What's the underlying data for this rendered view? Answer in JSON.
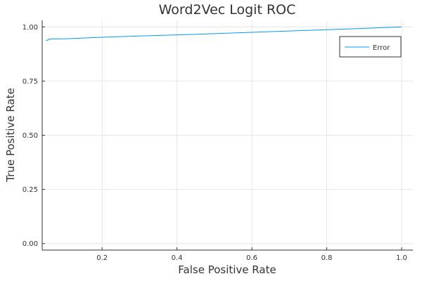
{
  "chart_data": {
    "type": "line",
    "title": "Word2Vec Logit ROC",
    "xlabel": "False Positive Rate",
    "ylabel": "True Positive Rate",
    "xlim": [
      0.04,
      1.03
    ],
    "ylim": [
      -0.03,
      1.03
    ],
    "grid": true,
    "legend_position": "top-right",
    "xticks": [
      {
        "value": 0.2,
        "label": "0.2"
      },
      {
        "value": 0.4,
        "label": "0.4"
      },
      {
        "value": 0.6,
        "label": "0.6"
      },
      {
        "value": 0.8,
        "label": "0.8"
      },
      {
        "value": 1.0,
        "label": "1.0"
      }
    ],
    "yticks": [
      {
        "value": 0.0,
        "label": "0.00"
      },
      {
        "value": 0.25,
        "label": "0.25"
      },
      {
        "value": 0.5,
        "label": "0.50"
      },
      {
        "value": 0.75,
        "label": "0.75"
      },
      {
        "value": 1.0,
        "label": "1.00"
      }
    ],
    "series": [
      {
        "name": "Error",
        "color": "#009AFA",
        "x": [
          0.05,
          0.06,
          0.1,
          0.2,
          0.3,
          0.4,
          0.5,
          0.6,
          0.7,
          0.8,
          0.9,
          1.0
        ],
        "y": [
          0.935,
          0.944,
          0.945,
          0.952,
          0.958,
          0.963,
          0.969,
          0.975,
          0.981,
          0.987,
          0.993,
          1.0
        ]
      }
    ]
  }
}
